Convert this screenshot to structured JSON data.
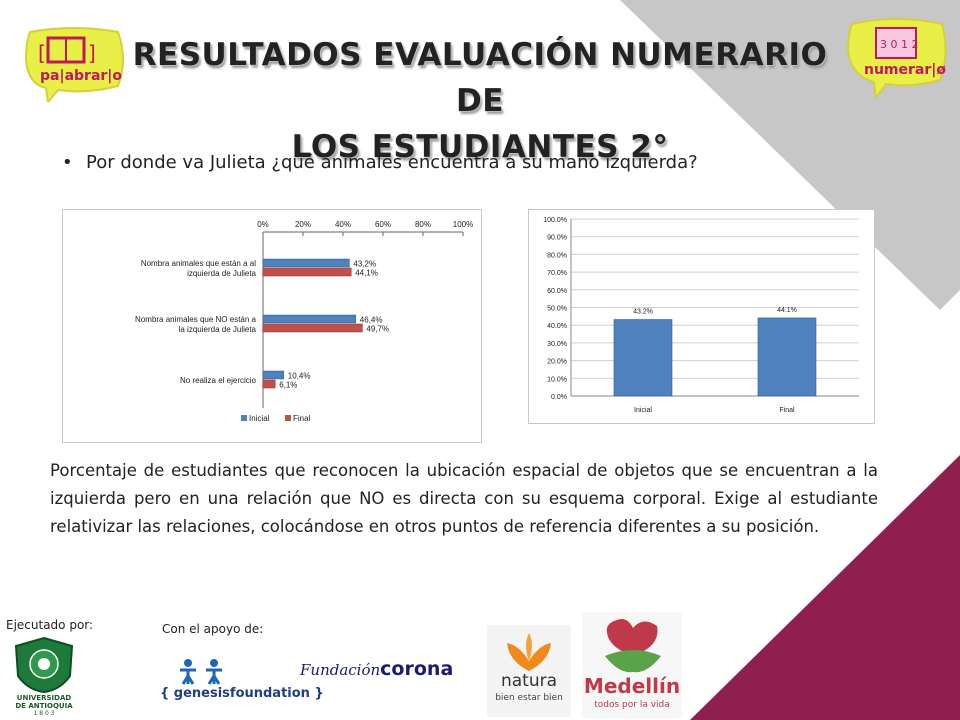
{
  "header": {
    "title_line1": "RESULTADOS EVALUACIÓN NUMERARIO DE",
    "title_line2": "LOS ESTUDIANTES 2°",
    "logo_left_text": "pa|abrar|o",
    "logo_right_text": "numerar|ø"
  },
  "bullet": {
    "text": "Por donde va Julieta ¿qué animales encuentra a su mano izquierda?"
  },
  "description": "Porcentaje de estudiantes que reconocen la ubicación espacial de objetos que se encuentran a la izquierda pero en una relación que NO es directa con su esquema corporal. Exige al estudiante relativizar las relaciones, colocándose en otros puntos de referencia diferentes a su posición.",
  "footer": {
    "executed_by": "Ejecutado por:",
    "supported_by": "Con el apoyo de:",
    "udea_line1": "UNIVERSIDAD",
    "udea_line2": "DE ANTIOQUIA",
    "udea_year": "1 8 0 3",
    "genesis_text": "{ genesisfoundation }",
    "corona_script": "Fundación",
    "corona_bold": "corona",
    "natura_name": "natura",
    "natura_tagline": "bien estar bien",
    "medellin_name": "Medellín",
    "medellin_tagline": "todos por la vida"
  },
  "colors": {
    "accent_gray": "#c7c7c7",
    "accent_maroon": "#8e1f4e",
    "initial_blue": "#4f81bd",
    "final_red": "#c0504d"
  },
  "chart_data": [
    {
      "type": "bar",
      "orientation": "horizontal",
      "categories": [
        "Nombra animales que están a al izquierda de Julieta",
        "Nombra animales que NO están a la izquierda de Julieta",
        "No realiza el ejercicio"
      ],
      "series": [
        {
          "name": "Inicial",
          "values": [
            43.2,
            46.4,
            10.4
          ],
          "labels": [
            "43,2%",
            "46,4%",
            "10,4%"
          ]
        },
        {
          "name": "Final",
          "values": [
            44.1,
            49.7,
            6.1
          ],
          "labels": [
            "44,1%",
            "49,7%",
            "6,1%"
          ]
        }
      ],
      "xlim": [
        0,
        100
      ],
      "xticks": [
        "0%",
        "20%",
        "40%",
        "60%",
        "80%",
        "100%"
      ],
      "axis_position": "top",
      "legend": "bottom"
    },
    {
      "type": "bar",
      "categories": [
        "Inicial",
        "Final"
      ],
      "values": [
        43.2,
        44.1
      ],
      "labels": [
        "43.2%",
        "44.1%"
      ],
      "ylim": [
        0,
        100
      ],
      "yticks": [
        "0.0%",
        "10.0%",
        "20.0%",
        "30.0%",
        "40.0%",
        "50.0%",
        "60.0%",
        "70.0%",
        "80.0%",
        "90.0%",
        "100.0%"
      ],
      "grid": true
    }
  ]
}
